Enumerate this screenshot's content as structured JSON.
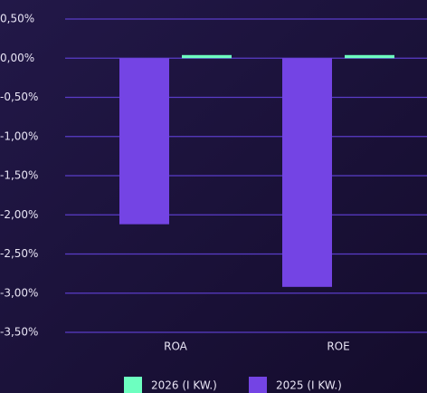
{
  "chart_data": {
    "type": "bar",
    "categories": [
      "ROA",
      "ROE"
    ],
    "series": [
      {
        "name": "2026 (I KW.)",
        "color": "#6dffc0",
        "values": [
          0.04,
          0.04
        ]
      },
      {
        "name": "2025 (I KW.)",
        "color": "#7444e4",
        "values": [
          -2.12,
          -2.92
        ]
      }
    ],
    "ylim": [
      -3.5,
      0.5
    ],
    "yticks": [
      {
        "value": 0.5,
        "label": "0,50%"
      },
      {
        "value": 0,
        "label": "0,00%"
      },
      {
        "value": -0.5,
        "label": "-0,50%"
      },
      {
        "value": -1,
        "label": "-1,00%"
      },
      {
        "value": -1.5,
        "label": "-1,50%"
      },
      {
        "value": -2,
        "label": "-2,00%"
      },
      {
        "value": -2.5,
        "label": "-2,50%"
      },
      {
        "value": -3,
        "label": "-3,00%"
      },
      {
        "value": -3.5,
        "label": "-3,50%"
      }
    ],
    "grid": true
  }
}
